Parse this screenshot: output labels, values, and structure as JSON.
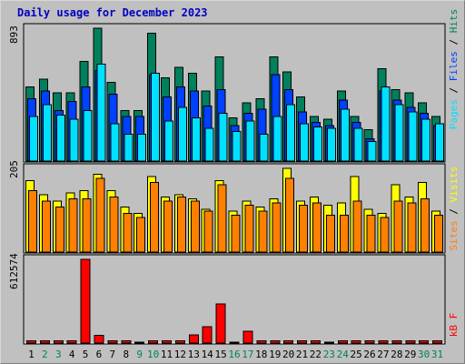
{
  "title": "Daily usage for December 2023",
  "colors": {
    "hits": "#00805c",
    "files": "#0040ff",
    "pages": "#00e0ff",
    "visits": "#ffff00",
    "sites": "#ff8000",
    "kbytes": "#ff0000",
    "weekday_label": "#000000",
    "weekend_label": "#00805c",
    "background": "#c0c0c0",
    "title": "#0000c0"
  },
  "chart_data": [
    {
      "type": "bar",
      "panel": "top",
      "ylabel_max": "893",
      "ylim": [
        0,
        893
      ],
      "legend": [
        "Pages",
        "Files",
        "Hits"
      ],
      "categories": [
        "1",
        "2",
        "3",
        "4",
        "5",
        "6",
        "7",
        "8",
        "9",
        "10",
        "11",
        "12",
        "13",
        "14",
        "15",
        "16",
        "17",
        "18",
        "19",
        "20",
        "21",
        "22",
        "23",
        "24",
        "25",
        "26",
        "27",
        "28",
        "29",
        "30",
        "31"
      ],
      "series": [
        {
          "name": "Hits",
          "values": [
            500,
            550,
            460,
            460,
            670,
            893,
            530,
            340,
            340,
            860,
            560,
            630,
            590,
            470,
            700,
            290,
            390,
            420,
            700,
            600,
            430,
            300,
            280,
            470,
            300,
            210,
            620,
            480,
            460,
            390,
            300
          ]
        },
        {
          "name": "Files",
          "values": [
            420,
            470,
            340,
            400,
            500,
            610,
            450,
            300,
            300,
            580,
            430,
            500,
            470,
            370,
            480,
            240,
            320,
            350,
            580,
            480,
            330,
            260,
            240,
            410,
            260,
            150,
            470,
            410,
            360,
            320,
            240
          ]
        },
        {
          "name": "Pages",
          "values": [
            300,
            380,
            310,
            280,
            340,
            650,
            250,
            180,
            180,
            590,
            270,
            360,
            290,
            220,
            320,
            200,
            270,
            180,
            300,
            380,
            250,
            230,
            220,
            350,
            220,
            130,
            500,
            380,
            330,
            280,
            250
          ]
        }
      ]
    },
    {
      "type": "bar",
      "panel": "middle",
      "ylabel_max": "205",
      "ylim": [
        0,
        205
      ],
      "legend": [
        "Sites",
        "Visits"
      ],
      "categories": [
        "1",
        "2",
        "3",
        "4",
        "5",
        "6",
        "7",
        "8",
        "9",
        "10",
        "11",
        "12",
        "13",
        "14",
        "15",
        "16",
        "17",
        "18",
        "19",
        "20",
        "21",
        "22",
        "23",
        "24",
        "25",
        "26",
        "27",
        "28",
        "29",
        "30",
        "31"
      ],
      "series": [
        {
          "name": "Visits",
          "values": [
            175,
            140,
            125,
            145,
            150,
            190,
            150,
            110,
            95,
            185,
            135,
            140,
            130,
            105,
            175,
            100,
            125,
            110,
            130,
            205,
            125,
            135,
            115,
            120,
            185,
            105,
            95,
            165,
            135,
            170,
            100
          ]
        },
        {
          "name": "Sites",
          "values": [
            150,
            125,
            110,
            130,
            130,
            180,
            135,
            95,
            85,
            170,
            125,
            135,
            125,
            100,
            165,
            90,
            115,
            100,
            120,
            180,
            115,
            120,
            90,
            90,
            125,
            90,
            85,
            125,
            120,
            130,
            90
          ]
        }
      ]
    },
    {
      "type": "bar",
      "panel": "bottom",
      "ylabel_max": "612574",
      "ylim": [
        0,
        612574
      ],
      "legend": [
        "kB F"
      ],
      "categories": [
        "1",
        "2",
        "3",
        "4",
        "5",
        "6",
        "7",
        "8",
        "9",
        "10",
        "11",
        "12",
        "13",
        "14",
        "15",
        "16",
        "17",
        "18",
        "19",
        "20",
        "21",
        "22",
        "23",
        "24",
        "25",
        "26",
        "27",
        "28",
        "29",
        "30",
        "31"
      ],
      "series": [
        {
          "name": "kB F",
          "values": [
            15000,
            15000,
            15000,
            15000,
            612574,
            55000,
            15000,
            15000,
            5000,
            15000,
            15000,
            15000,
            60000,
            120000,
            285000,
            5000,
            85000,
            15000,
            15000,
            15000,
            15000,
            15000,
            5000,
            15000,
            15000,
            15000,
            15000,
            15000,
            15000,
            15000,
            15000
          ]
        }
      ]
    }
  ]
}
